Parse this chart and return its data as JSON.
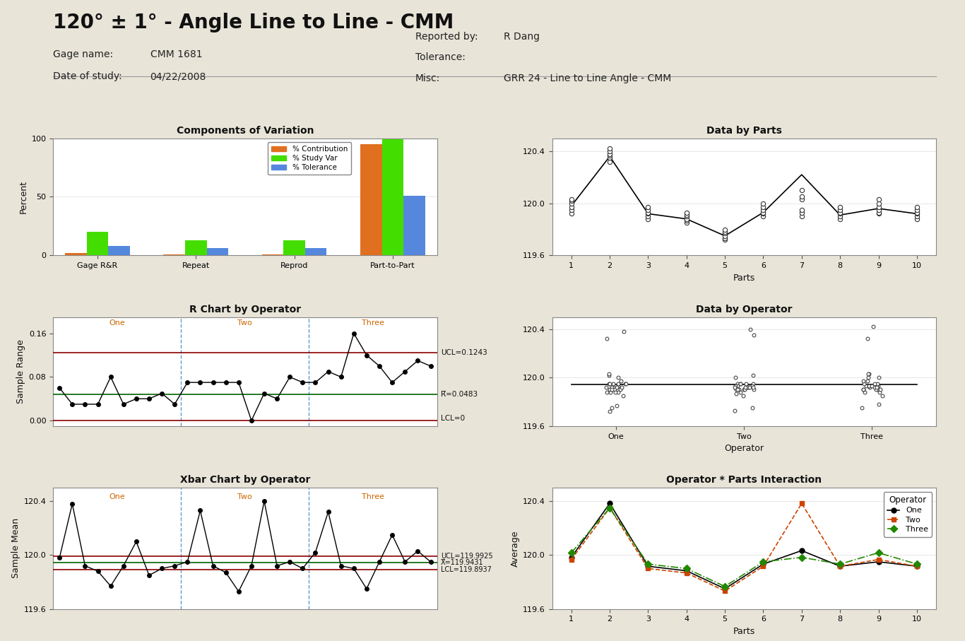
{
  "title": "120° ± 1° - Angle Line to Line - CMM",
  "bg_color": "#E8E4D8",
  "plot_bg": "#FFFFFF",
  "header": {
    "gage_name": "CMM 1681",
    "date_of_study": "04/22/2008",
    "reported_by": "R Dang",
    "tolerance": "",
    "misc": "GRR 24 - Line to Line Angle - CMM"
  },
  "components_of_variation": {
    "title": "Components of Variation",
    "categories": [
      "Gage R&R",
      "Repeat",
      "Reprod",
      "Part-to-Part"
    ],
    "contribution": [
      2,
      1,
      1,
      95
    ],
    "study_var": [
      20,
      13,
      13,
      99
    ],
    "tolerance": [
      8,
      6,
      6,
      51
    ],
    "colors": [
      "#E07020",
      "#44DD00",
      "#5588DD"
    ],
    "ylim": [
      0,
      100
    ],
    "yticks": [
      0,
      50,
      100
    ]
  },
  "r_chart": {
    "title": "R Chart by Operator",
    "ucl": 0.1243,
    "cl": 0.0483,
    "lcl": 0,
    "ucl_color": "#8B0000",
    "cl_color": "#006400",
    "lcl_color": "#8B0000",
    "ylim": [
      -0.01,
      0.19
    ],
    "yticks": [
      0.0,
      0.08,
      0.16
    ],
    "data_one": [
      0.06,
      0.03,
      0.03,
      0.03,
      0.08,
      0.03,
      0.04,
      0.04,
      0.05,
      0.03
    ],
    "data_two": [
      0.07,
      0.07,
      0.07,
      0.07,
      0.07,
      0.0,
      0.05,
      0.04,
      0.08,
      0.07
    ],
    "data_three": [
      0.07,
      0.09,
      0.08,
      0.16,
      0.12,
      0.1,
      0.07,
      0.09,
      0.11,
      0.1
    ]
  },
  "xbar_chart": {
    "title": "Xbar Chart by Operator",
    "ucl": 119.9925,
    "cl": 119.9431,
    "lcl": 119.8937,
    "ucl_color": "#8B0000",
    "cl_color": "#006400",
    "lcl_color": "#8B0000",
    "ylim": [
      119.6,
      120.5
    ],
    "yticks": [
      119.6,
      120.0,
      120.4
    ],
    "data_one": [
      119.98,
      120.38,
      119.92,
      119.88,
      119.77,
      119.92,
      120.1,
      119.85,
      119.9,
      119.92
    ],
    "data_two": [
      119.95,
      120.33,
      119.92,
      119.87,
      119.73,
      119.92,
      120.4,
      119.92,
      119.95,
      119.9
    ],
    "data_three": [
      120.02,
      120.32,
      119.92,
      119.9,
      119.75,
      119.95,
      120.15,
      119.95,
      120.03,
      119.95
    ]
  },
  "data_by_parts": {
    "title": "Data by Parts",
    "parts": [
      1,
      2,
      3,
      4,
      5,
      6,
      7,
      8,
      9,
      10
    ],
    "mean": [
      119.98,
      120.36,
      119.92,
      119.88,
      119.75,
      119.93,
      120.22,
      119.91,
      119.96,
      119.92
    ],
    "scatter": [
      [
        119.92,
        119.95,
        119.97,
        120.0,
        120.02,
        120.03
      ],
      [
        120.32,
        120.35,
        120.37,
        120.38,
        120.4,
        120.42
      ],
      [
        119.88,
        119.9,
        119.92,
        119.93,
        119.95,
        119.97
      ],
      [
        119.85,
        119.87,
        119.88,
        119.9,
        119.91,
        119.93
      ],
      [
        119.72,
        119.73,
        119.75,
        119.77,
        119.78,
        119.8
      ],
      [
        119.9,
        119.92,
        119.93,
        119.95,
        119.97,
        120.0
      ],
      [
        119.9,
        119.93,
        119.95,
        120.03,
        120.05,
        120.1
      ],
      [
        119.88,
        119.9,
        119.92,
        119.93,
        119.95,
        119.97
      ],
      [
        119.92,
        119.93,
        119.95,
        119.97,
        120.0,
        120.03
      ],
      [
        119.88,
        119.9,
        119.92,
        119.93,
        119.95,
        119.97
      ]
    ],
    "ylim": [
      119.6,
      120.5
    ],
    "yticks": [
      119.6,
      120.0,
      120.4
    ]
  },
  "data_by_operator": {
    "title": "Data by Operator",
    "scatter_one": [
      119.92,
      119.95,
      119.97,
      120.0,
      120.02,
      120.03,
      120.32,
      120.38,
      119.88,
      119.9,
      119.92,
      119.95,
      119.85,
      119.88,
      119.9,
      119.72,
      119.75,
      119.77,
      119.9,
      119.92,
      119.93,
      119.95,
      119.9,
      119.95,
      119.88,
      119.92,
      119.95,
      119.92,
      119.95,
      119.88
    ],
    "scatter_two": [
      119.92,
      119.95,
      120.0,
      120.02,
      120.35,
      120.4,
      119.88,
      119.9,
      119.92,
      119.85,
      119.87,
      119.9,
      119.73,
      119.75,
      119.9,
      119.92,
      119.95,
      119.9,
      119.92,
      119.93,
      119.9,
      119.92,
      119.95,
      119.93,
      119.95,
      119.92,
      119.93,
      119.9,
      119.92,
      119.95
    ],
    "scatter_three": [
      119.92,
      119.97,
      120.0,
      120.03,
      120.32,
      120.42,
      119.88,
      119.93,
      119.9,
      119.85,
      119.9,
      119.93,
      119.75,
      119.78,
      119.9,
      119.93,
      119.95,
      119.9,
      119.93,
      119.95,
      119.88,
      119.92,
      119.93,
      119.97,
      120.0,
      120.03,
      119.92,
      119.95,
      119.9,
      119.93
    ],
    "ylim": [
      119.6,
      120.5
    ],
    "yticks": [
      119.6,
      120.0,
      120.4
    ]
  },
  "operator_parts": {
    "title": "Operator * Parts Interaction",
    "parts": [
      1,
      2,
      3,
      4,
      5,
      6,
      7,
      8,
      9,
      10
    ],
    "one": [
      119.983,
      120.383,
      119.917,
      119.883,
      119.75,
      119.933,
      120.033,
      119.917,
      119.95,
      119.917
    ],
    "two": [
      119.967,
      120.35,
      119.9,
      119.867,
      119.733,
      119.917,
      120.383,
      119.917,
      119.967,
      119.917
    ],
    "three": [
      120.017,
      120.35,
      119.933,
      119.9,
      119.767,
      119.95,
      119.983,
      119.933,
      120.017,
      119.933
    ],
    "ylim": [
      119.6,
      120.5
    ],
    "yticks": [
      119.6,
      120.0,
      120.4
    ],
    "color_one": "#000000",
    "color_two": "#CC4400",
    "color_three": "#228800"
  }
}
